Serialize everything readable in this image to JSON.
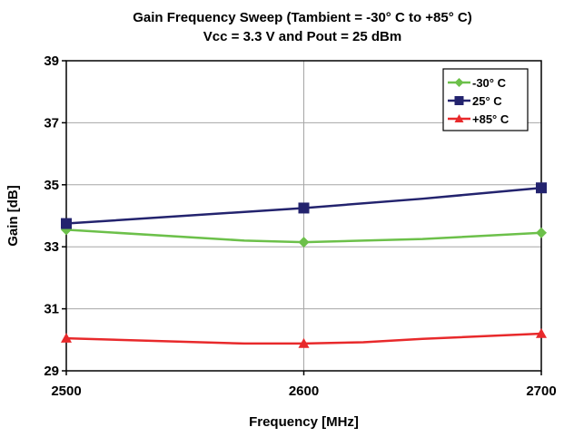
{
  "chart_data": {
    "type": "line",
    "title": "Gain Frequency Sweep (Tambient = -30° C to +85° C)",
    "subtitle": "Vcc = 3.3 V and Pout = 25 dBm",
    "xlabel": "Frequency [MHz]",
    "ylabel": "Gain [dB]",
    "xlim": [
      2500,
      2700
    ],
    "ylim": [
      29,
      39
    ],
    "xticks": [
      2500,
      2600,
      2700
    ],
    "yticks": [
      29,
      31,
      33,
      35,
      37,
      39
    ],
    "grid": true,
    "legend_position": "top-right",
    "series": [
      {
        "name": "-30° C",
        "color": "#6cc04a",
        "marker": "diamond",
        "x": [
          2500,
          2575,
          2600,
          2650,
          2700
        ],
        "y": [
          33.55,
          33.2,
          33.15,
          33.25,
          33.45
        ],
        "marker_x": [
          2500,
          2600,
          2700
        ],
        "marker_y": [
          33.55,
          33.15,
          33.45
        ]
      },
      {
        "name": "25° C",
        "color": "#23236e",
        "marker": "square",
        "x": [
          2500,
          2600,
          2650,
          2700
        ],
        "y": [
          33.75,
          34.25,
          34.55,
          34.9
        ],
        "marker_x": [
          2500,
          2600,
          2700
        ],
        "marker_y": [
          33.75,
          34.25,
          34.9
        ]
      },
      {
        "name": "+85° C",
        "color": "#e8292b",
        "marker": "triangle",
        "x": [
          2500,
          2575,
          2600,
          2625,
          2650,
          2700
        ],
        "y": [
          30.05,
          29.88,
          29.88,
          29.92,
          30.03,
          30.2
        ],
        "marker_x": [
          2500,
          2600,
          2700
        ],
        "marker_y": [
          30.05,
          29.88,
          30.2
        ]
      }
    ]
  }
}
